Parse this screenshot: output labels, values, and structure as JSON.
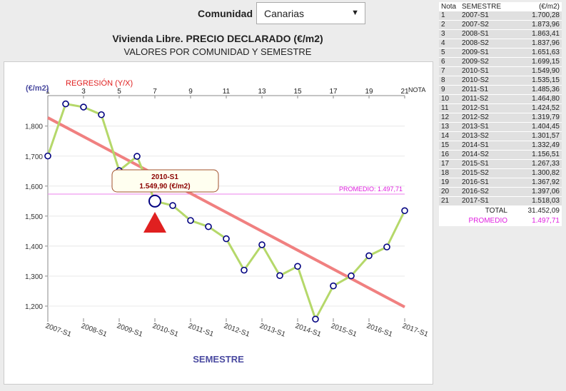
{
  "filter": {
    "label": "Comunidad",
    "selected": "Canarias"
  },
  "chart_data": {
    "type": "line",
    "title": "Vivienda Libre. PRECIO DECLARADO (€/m2)",
    "subtitle": "VALORES POR COMUNIDAD Y SEMESTRE",
    "ylabel": "(€/m2)",
    "xlabel": "SEMESTRE",
    "top_axis_label": "NOTA",
    "regression_label": "REGRESIÓN (Y/X)",
    "average_label": "PROMEDIO: 1.497,71",
    "average": 1497.71,
    "ylim": [
      1150,
      1880
    ],
    "yticks": [
      "1,200",
      "1,300",
      "1,400",
      "1,500",
      "1,600",
      "1,700",
      "1,800"
    ],
    "top_ticks": [
      "1",
      "3",
      "5",
      "7",
      "9",
      "11",
      "13",
      "15",
      "17",
      "19",
      "21"
    ],
    "x_tick_labels": [
      "2007-S1",
      "2008-S1",
      "2009-S1",
      "2010-S1",
      "2011-S1",
      "2012-S1",
      "2013-S1",
      "2014-S1",
      "2015-S1",
      "2016-S1",
      "2017-S1"
    ],
    "categories": [
      "2007-S1",
      "2007-S2",
      "2008-S1",
      "2008-S2",
      "2009-S1",
      "2009-S2",
      "2010-S1",
      "2010-S2",
      "2011-S1",
      "2011-S2",
      "2012-S1",
      "2012-S2",
      "2013-S1",
      "2013-S2",
      "2014-S1",
      "2014-S2",
      "2015-S1",
      "2015-S2",
      "2016-S1",
      "2016-S2",
      "2017-S1"
    ],
    "values": [
      1700.28,
      1873.96,
      1863.41,
      1837.96,
      1651.63,
      1699.15,
      1549.9,
      1535.15,
      1485.36,
      1464.8,
      1424.52,
      1319.79,
      1404.45,
      1301.57,
      1332.49,
      1156.51,
      1267.33,
      1300.82,
      1367.92,
      1397.06,
      1518.03
    ],
    "regression": [
      1828,
      1197
    ],
    "tooltip": {
      "semester": "2010-S1",
      "value": "1.549,90 (€/m2)"
    },
    "colors": {
      "line": "#b5d86a",
      "regression": "#f08080",
      "average": "#ee82ee",
      "marker": "#000080",
      "tooltip_border": "#a0522d",
      "triangle": "#e02020"
    }
  },
  "table": {
    "headers": [
      "Nota",
      "SEMESTRE",
      "(€/m2)"
    ],
    "rows": [
      [
        "1",
        "2007-S1",
        "1.700,28"
      ],
      [
        "2",
        "2007-S2",
        "1.873,96"
      ],
      [
        "3",
        "2008-S1",
        "1.863,41"
      ],
      [
        "4",
        "2008-S2",
        "1.837,96"
      ],
      [
        "5",
        "2009-S1",
        "1.651,63"
      ],
      [
        "6",
        "2009-S2",
        "1.699,15"
      ],
      [
        "7",
        "2010-S1",
        "1.549,90"
      ],
      [
        "8",
        "2010-S2",
        "1.535,15"
      ],
      [
        "9",
        "2011-S1",
        "1.485,36"
      ],
      [
        "10",
        "2011-S2",
        "1.464,80"
      ],
      [
        "11",
        "2012-S1",
        "1.424,52"
      ],
      [
        "12",
        "2012-S2",
        "1.319,79"
      ],
      [
        "13",
        "2013-S1",
        "1.404,45"
      ],
      [
        "14",
        "2013-S2",
        "1.301,57"
      ],
      [
        "15",
        "2014-S1",
        "1.332,49"
      ],
      [
        "16",
        "2014-S2",
        "1.156,51"
      ],
      [
        "17",
        "2015-S1",
        "1.267,33"
      ],
      [
        "18",
        "2015-S2",
        "1.300,82"
      ],
      [
        "19",
        "2016-S1",
        "1.367,92"
      ],
      [
        "20",
        "2016-S2",
        "1.397,06"
      ],
      [
        "21",
        "2017-S1",
        "1.518,03"
      ]
    ],
    "total_label": "TOTAL",
    "total_value": "31.452,09",
    "average_label": "PROMEDIO",
    "average_value": "1.497,71"
  }
}
